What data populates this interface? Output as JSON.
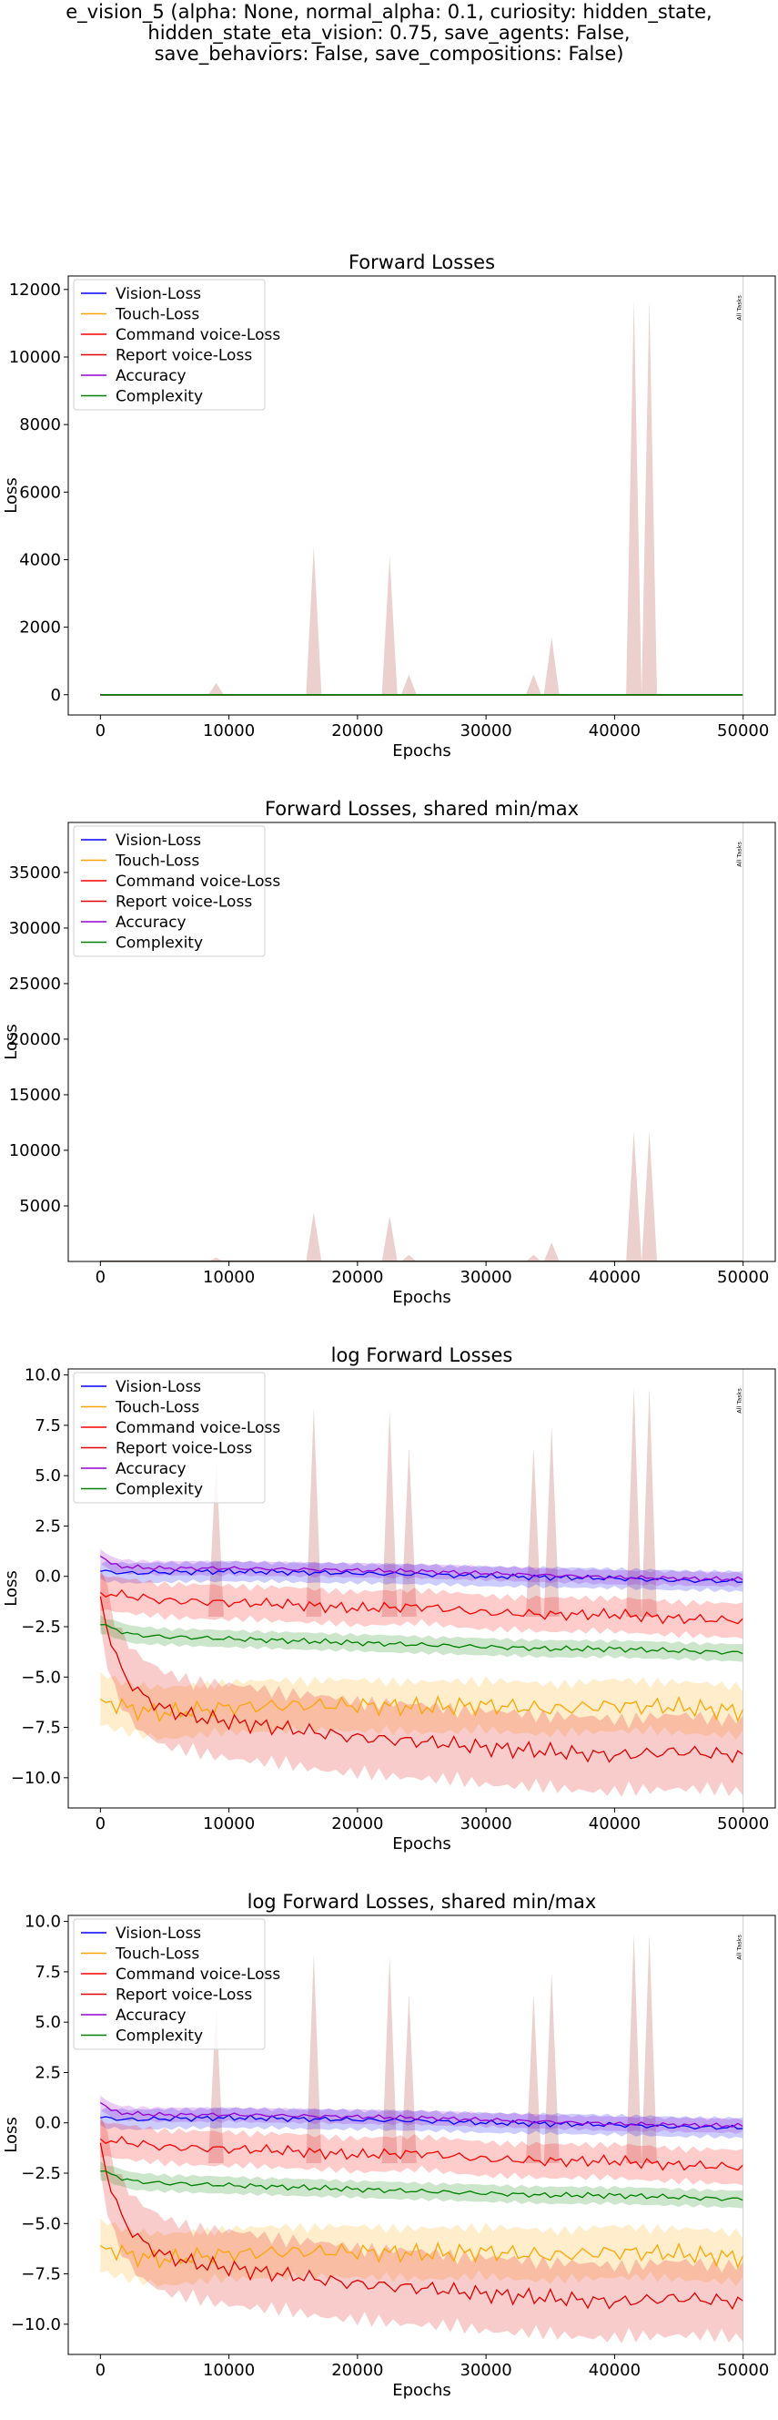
{
  "figure": {
    "suptitle": "e_vision_5 (alpha: None, normal_alpha: 0.1, curiosity: hidden_state,\nhidden_state_eta_vision: 0.75, save_agents: False,\nsave_behaviors: False, save_compositions: False)"
  },
  "colors": {
    "vision": "#0000ff",
    "touch": "#ffa500",
    "command": "#ff0000",
    "report": "#e00000",
    "accuracy": "#9400d3",
    "complexity": "#008000",
    "spike_fill": "#e8c8c4",
    "band_fill": "#ff9999"
  },
  "chart_data": [
    {
      "type": "line",
      "title": "Forward Losses",
      "xlabel": "Epochs",
      "ylabel": "Loss",
      "xlim": [
        -2500,
        52500
      ],
      "ylim": [
        -600,
        12400
      ],
      "xticks": [
        0,
        10000,
        20000,
        30000,
        40000,
        50000
      ],
      "yticks": [
        0,
        2000,
        4000,
        6000,
        8000,
        10000,
        12000
      ],
      "ytick_labels": [
        "0",
        "2000",
        "4000",
        "6000",
        "8000",
        "10000",
        "12000"
      ],
      "legend_position": "top-left",
      "grid": false,
      "vline": {
        "x": 50000,
        "label": "All Tasks"
      },
      "series": [
        {
          "name": "Vision-Loss",
          "color": "vision",
          "x": [
            0,
            50000
          ],
          "y": [
            0,
            0
          ]
        },
        {
          "name": "Touch-Loss",
          "color": "touch",
          "x": [
            0,
            50000
          ],
          "y": [
            0,
            0
          ]
        },
        {
          "name": "Command voice-Loss",
          "color": "command",
          "x": [
            0,
            50000
          ],
          "y": [
            0,
            0
          ]
        },
        {
          "name": "Report voice-Loss",
          "color": "report",
          "x": [
            0,
            50000
          ],
          "y": [
            0,
            0
          ]
        },
        {
          "name": "Accuracy",
          "color": "accuracy",
          "x": [
            0,
            50000
          ],
          "y": [
            0,
            0
          ]
        },
        {
          "name": "Complexity",
          "color": "complexity",
          "x": [
            0,
            50000
          ],
          "y": [
            0,
            0
          ]
        }
      ],
      "spikes": [
        {
          "x": 9000,
          "y": 350
        },
        {
          "x": 16600,
          "y": 4400
        },
        {
          "x": 22500,
          "y": 4100
        },
        {
          "x": 24000,
          "y": 600
        },
        {
          "x": 33700,
          "y": 600
        },
        {
          "x": 35100,
          "y": 1700
        },
        {
          "x": 41500,
          "y": 11700
        },
        {
          "x": 42700,
          "y": 11700
        }
      ]
    },
    {
      "type": "line",
      "title": "Forward Losses, shared min/max",
      "xlabel": "Epochs",
      "ylabel": "Loss",
      "xlim": [
        -2500,
        52500
      ],
      "ylim": [
        0,
        39500
      ],
      "xticks": [
        0,
        10000,
        20000,
        30000,
        40000,
        50000
      ],
      "yticks": [
        5000,
        10000,
        15000,
        20000,
        25000,
        30000,
        35000
      ],
      "ytick_labels": [
        "5000",
        "10000",
        "15000",
        "20000",
        "25000",
        "30000",
        "35000"
      ],
      "legend_position": "top-left",
      "grid": false,
      "vline": {
        "x": 50000,
        "label": "All Tasks"
      },
      "series": [
        {
          "name": "Vision-Loss",
          "color": "vision",
          "x": [
            0,
            50000
          ],
          "y": [
            0,
            0
          ]
        },
        {
          "name": "Touch-Loss",
          "color": "touch",
          "x": [
            0,
            50000
          ],
          "y": [
            0,
            0
          ]
        },
        {
          "name": "Command voice-Loss",
          "color": "command",
          "x": [
            0,
            50000
          ],
          "y": [
            0,
            0
          ]
        },
        {
          "name": "Report voice-Loss",
          "color": "report",
          "x": [
            0,
            50000
          ],
          "y": [
            0,
            0
          ]
        },
        {
          "name": "Accuracy",
          "color": "accuracy",
          "x": [
            0,
            50000
          ],
          "y": [
            0,
            0
          ]
        },
        {
          "name": "Complexity",
          "color": "complexity",
          "x": [
            0,
            50000
          ],
          "y": [
            0,
            0
          ]
        }
      ],
      "spikes": [
        {
          "x": 9000,
          "y": 350
        },
        {
          "x": 16600,
          "y": 4400
        },
        {
          "x": 22500,
          "y": 4100
        },
        {
          "x": 24000,
          "y": 600
        },
        {
          "x": 33700,
          "y": 600
        },
        {
          "x": 35100,
          "y": 1700
        },
        {
          "x": 41500,
          "y": 11700
        },
        {
          "x": 42700,
          "y": 11700
        }
      ]
    },
    {
      "type": "line",
      "title": "log Forward Losses",
      "xlabel": "Epochs",
      "ylabel": "Loss",
      "xlim": [
        -2500,
        52500
      ],
      "ylim": [
        -11.5,
        10.3
      ],
      "xticks": [
        0,
        10000,
        20000,
        30000,
        40000,
        50000
      ],
      "yticks": [
        -10,
        -7.5,
        -5,
        -2.5,
        0,
        2.5,
        5,
        7.5,
        10
      ],
      "ytick_labels": [
        "−10.0",
        "−7.5",
        "−5.0",
        "−2.5",
        "0.0",
        "2.5",
        "5.0",
        "7.5",
        "10.0"
      ],
      "legend_position": "top-left",
      "grid": false,
      "vline": {
        "x": 50000,
        "label": "All Tasks"
      },
      "series": [
        {
          "name": "Vision-Loss",
          "color": "vision",
          "x": [
            0,
            2500,
            5000,
            10000,
            15000,
            20000,
            25000,
            30000,
            35000,
            40000,
            45000,
            50000
          ],
          "y": [
            0.25,
            0.15,
            0.2,
            0.25,
            0.2,
            0.15,
            0.1,
            0.0,
            -0.05,
            -0.1,
            -0.2,
            -0.25
          ]
        },
        {
          "name": "Touch-Loss",
          "color": "touch",
          "x": [
            0,
            2500,
            5000,
            10000,
            15000,
            20000,
            25000,
            30000,
            35000,
            40000,
            45000,
            50000
          ],
          "y": [
            -6.1,
            -6.6,
            -6.8,
            -6.5,
            -6.4,
            -6.4,
            -6.5,
            -6.4,
            -6.6,
            -6.4,
            -6.5,
            -6.7
          ]
        },
        {
          "name": "Command voice-Loss",
          "color": "command",
          "x": [
            0,
            2500,
            5000,
            10000,
            15000,
            20000,
            25000,
            30000,
            35000,
            40000,
            45000,
            50000
          ],
          "y": [
            -0.8,
            -1.0,
            -1.2,
            -1.3,
            -1.4,
            -1.6,
            -1.5,
            -1.8,
            -1.9,
            -1.9,
            -2.1,
            -2.2
          ]
        },
        {
          "name": "Report voice-Loss",
          "color": "report",
          "x": [
            0,
            1000,
            2000,
            3000,
            5000,
            7500,
            10000,
            15000,
            20000,
            25000,
            30000,
            35000,
            40000,
            45000,
            50000
          ],
          "y": [
            -1.0,
            -3.8,
            -5.0,
            -5.8,
            -6.6,
            -7.0,
            -7.2,
            -7.6,
            -8.0,
            -8.2,
            -8.5,
            -8.7,
            -8.9,
            -8.7,
            -8.9
          ]
        },
        {
          "name": "Accuracy",
          "color": "accuracy",
          "x": [
            0,
            1000,
            2500,
            5000,
            10000,
            15000,
            20000,
            25000,
            30000,
            35000,
            40000,
            45000,
            50000
          ],
          "y": [
            1.0,
            0.55,
            0.45,
            0.4,
            0.4,
            0.35,
            0.3,
            0.25,
            0.15,
            0.05,
            -0.05,
            -0.1,
            -0.15
          ]
        },
        {
          "name": "Complexity",
          "color": "complexity",
          "x": [
            0,
            2500,
            5000,
            10000,
            15000,
            20000,
            25000,
            30000,
            35000,
            40000,
            45000,
            50000
          ],
          "y": [
            -2.4,
            -2.9,
            -3.0,
            -3.1,
            -3.2,
            -3.3,
            -3.4,
            -3.5,
            -3.6,
            -3.6,
            -3.7,
            -3.8
          ]
        }
      ],
      "spikes": [
        {
          "x": 9000,
          "y": 5.9
        },
        {
          "x": 16600,
          "y": 8.4
        },
        {
          "x": 22500,
          "y": 8.3
        },
        {
          "x": 24000,
          "y": 6.4
        },
        {
          "x": 33700,
          "y": 6.4
        },
        {
          "x": 35100,
          "y": 7.5
        },
        {
          "x": 41500,
          "y": 9.4
        },
        {
          "x": 42700,
          "y": 9.4
        }
      ]
    },
    {
      "type": "line",
      "title": "log Forward Losses, shared min/max",
      "xlabel": "Epochs",
      "ylabel": "Loss",
      "xlim": [
        -2500,
        52500
      ],
      "ylim": [
        -11.5,
        10.3
      ],
      "xticks": [
        0,
        10000,
        20000,
        30000,
        40000,
        50000
      ],
      "yticks": [
        -10,
        -7.5,
        -5,
        -2.5,
        0,
        2.5,
        5,
        7.5,
        10
      ],
      "ytick_labels": [
        "−10.0",
        "−7.5",
        "−5.0",
        "−2.5",
        "0.0",
        "2.5",
        "5.0",
        "7.5",
        "10.0"
      ],
      "legend_position": "top-left",
      "grid": false,
      "vline": {
        "x": 50000,
        "label": "All Tasks"
      },
      "series": [
        {
          "name": "Vision-Loss",
          "color": "vision",
          "x": [
            0,
            2500,
            5000,
            10000,
            15000,
            20000,
            25000,
            30000,
            35000,
            40000,
            45000,
            50000
          ],
          "y": [
            0.25,
            0.15,
            0.2,
            0.25,
            0.2,
            0.15,
            0.1,
            0.0,
            -0.05,
            -0.1,
            -0.2,
            -0.25
          ]
        },
        {
          "name": "Touch-Loss",
          "color": "touch",
          "x": [
            0,
            2500,
            5000,
            10000,
            15000,
            20000,
            25000,
            30000,
            35000,
            40000,
            45000,
            50000
          ],
          "y": [
            -6.1,
            -6.6,
            -6.8,
            -6.5,
            -6.4,
            -6.4,
            -6.5,
            -6.4,
            -6.6,
            -6.4,
            -6.5,
            -6.7
          ]
        },
        {
          "name": "Command voice-Loss",
          "color": "command",
          "x": [
            0,
            2500,
            5000,
            10000,
            15000,
            20000,
            25000,
            30000,
            35000,
            40000,
            45000,
            50000
          ],
          "y": [
            -0.8,
            -1.0,
            -1.2,
            -1.3,
            -1.4,
            -1.6,
            -1.5,
            -1.8,
            -1.9,
            -1.9,
            -2.1,
            -2.2
          ]
        },
        {
          "name": "Report voice-Loss",
          "color": "report",
          "x": [
            0,
            1000,
            2000,
            3000,
            5000,
            7500,
            10000,
            15000,
            20000,
            25000,
            30000,
            35000,
            40000,
            45000,
            50000
          ],
          "y": [
            -1.0,
            -3.8,
            -5.0,
            -5.8,
            -6.6,
            -7.0,
            -7.2,
            -7.6,
            -8.0,
            -8.2,
            -8.5,
            -8.7,
            -8.9,
            -8.7,
            -8.9
          ]
        },
        {
          "name": "Accuracy",
          "color": "accuracy",
          "x": [
            0,
            1000,
            2500,
            5000,
            10000,
            15000,
            20000,
            25000,
            30000,
            35000,
            40000,
            45000,
            50000
          ],
          "y": [
            1.0,
            0.55,
            0.45,
            0.4,
            0.4,
            0.35,
            0.3,
            0.25,
            0.15,
            0.05,
            -0.05,
            -0.1,
            -0.15
          ]
        },
        {
          "name": "Complexity",
          "color": "complexity",
          "x": [
            0,
            2500,
            5000,
            10000,
            15000,
            20000,
            25000,
            30000,
            35000,
            40000,
            45000,
            50000
          ],
          "y": [
            -2.4,
            -2.9,
            -3.0,
            -3.1,
            -3.2,
            -3.3,
            -3.4,
            -3.5,
            -3.6,
            -3.6,
            -3.7,
            -3.8
          ]
        }
      ],
      "spikes": [
        {
          "x": 9000,
          "y": 5.9
        },
        {
          "x": 16600,
          "y": 8.4
        },
        {
          "x": 22500,
          "y": 8.3
        },
        {
          "x": 24000,
          "y": 6.4
        },
        {
          "x": 33700,
          "y": 6.4
        },
        {
          "x": 35100,
          "y": 7.5
        },
        {
          "x": 41500,
          "y": 9.4
        },
        {
          "x": 42700,
          "y": 9.4
        }
      ]
    }
  ]
}
